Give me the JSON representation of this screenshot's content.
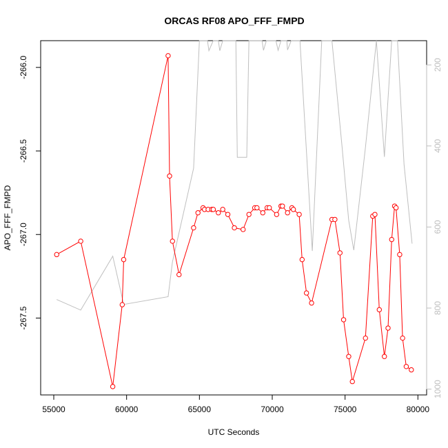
{
  "chart_data": {
    "type": "line",
    "title": "ORCAS RF08 APO_FFF_FMPD",
    "xlabel": "UTC Seconds",
    "ylabel": "APO_FFF_FMPD",
    "xlim": [
      54100,
      80600
    ],
    "ylim": [
      -267.96,
      -265.84
    ],
    "x_ticks": [
      55000,
      60000,
      65000,
      70000,
      75000,
      80000
    ],
    "y_ticks": [
      -266.0,
      -266.5,
      -267.0,
      -267.5
    ],
    "y_tick_labels": [
      "-266.0",
      "-266.5",
      "-267.0",
      "-267.5"
    ],
    "y2_ticks": [
      200,
      400,
      600,
      800,
      1000
    ],
    "y2_lim": [
      1014.3,
      140.2
    ],
    "series": [
      {
        "axis": "left",
        "color": "#ff0000",
        "marker": "open-circle",
        "points": [
          [
            55200,
            -267.12
          ],
          [
            56850,
            -267.04
          ],
          [
            59050,
            -267.91
          ],
          [
            59700,
            -267.42
          ],
          [
            59800,
            -267.15
          ],
          [
            62850,
            -265.93
          ],
          [
            62950,
            -266.65
          ],
          [
            63150,
            -267.04
          ],
          [
            63600,
            -267.24
          ],
          [
            64600,
            -266.96
          ],
          [
            64900,
            -266.87
          ],
          [
            65250,
            -266.84
          ],
          [
            65350,
            -266.85
          ],
          [
            65600,
            -266.85
          ],
          [
            65850,
            -266.85
          ],
          [
            65950,
            -266.85
          ],
          [
            66300,
            -266.87
          ],
          [
            66600,
            -266.85
          ],
          [
            66950,
            -266.88
          ],
          [
            67400,
            -266.96
          ],
          [
            68000,
            -266.97
          ],
          [
            68400,
            -266.88
          ],
          [
            68800,
            -266.84
          ],
          [
            68950,
            -266.84
          ],
          [
            69350,
            -266.87
          ],
          [
            69650,
            -266.84
          ],
          [
            69800,
            -266.84
          ],
          [
            70300,
            -266.88
          ],
          [
            70600,
            -266.83
          ],
          [
            70700,
            -266.83
          ],
          [
            71050,
            -266.87
          ],
          [
            71350,
            -266.84
          ],
          [
            71450,
            -266.85
          ],
          [
            71850,
            -266.88
          ],
          [
            72050,
            -267.15
          ],
          [
            72350,
            -267.35
          ],
          [
            72700,
            -267.41
          ],
          [
            74100,
            -266.91
          ],
          [
            74300,
            -266.91
          ],
          [
            74650,
            -267.11
          ],
          [
            74900,
            -267.51
          ],
          [
            75250,
            -267.73
          ],
          [
            75500,
            -267.88
          ],
          [
            76400,
            -267.62
          ],
          [
            76900,
            -266.89
          ],
          [
            77050,
            -266.88
          ],
          [
            77350,
            -267.45
          ],
          [
            77700,
            -267.73
          ],
          [
            77950,
            -267.56
          ],
          [
            78200,
            -267.03
          ],
          [
            78400,
            -266.83
          ],
          [
            78500,
            -266.84
          ],
          [
            78750,
            -267.12
          ],
          [
            78950,
            -267.62
          ],
          [
            79200,
            -267.79
          ],
          [
            79550,
            -267.81
          ]
        ]
      },
      {
        "axis": "right",
        "color": "#bebebe",
        "marker": "none",
        "points": [
          [
            55200,
            779
          ],
          [
            56850,
            805
          ],
          [
            59050,
            672
          ],
          [
            59800,
            791
          ],
          [
            62850,
            772
          ],
          [
            63150,
            686
          ],
          [
            64600,
            455
          ],
          [
            65000,
            140
          ],
          [
            65550,
            140
          ],
          [
            65650,
            165
          ],
          [
            65950,
            140
          ],
          [
            66300,
            140
          ],
          [
            66400,
            165
          ],
          [
            66600,
            140
          ],
          [
            67500,
            140
          ],
          [
            67600,
            428
          ],
          [
            68250,
            428
          ],
          [
            68400,
            140
          ],
          [
            69300,
            140
          ],
          [
            69400,
            164
          ],
          [
            69600,
            140
          ],
          [
            70250,
            140
          ],
          [
            70400,
            164
          ],
          [
            70600,
            140
          ],
          [
            71000,
            140
          ],
          [
            71050,
            163
          ],
          [
            71300,
            140
          ],
          [
            71900,
            140
          ],
          [
            72750,
            659
          ],
          [
            73400,
            140
          ],
          [
            74100,
            140
          ],
          [
            74800,
            404
          ],
          [
            75250,
            583
          ],
          [
            75600,
            657
          ],
          [
            76400,
            404
          ],
          [
            77150,
            140
          ],
          [
            77700,
            427
          ],
          [
            78200,
            140
          ],
          [
            78600,
            140
          ],
          [
            79050,
            445
          ],
          [
            79600,
            641
          ]
        ]
      }
    ],
    "grid": false,
    "legend": false
  }
}
